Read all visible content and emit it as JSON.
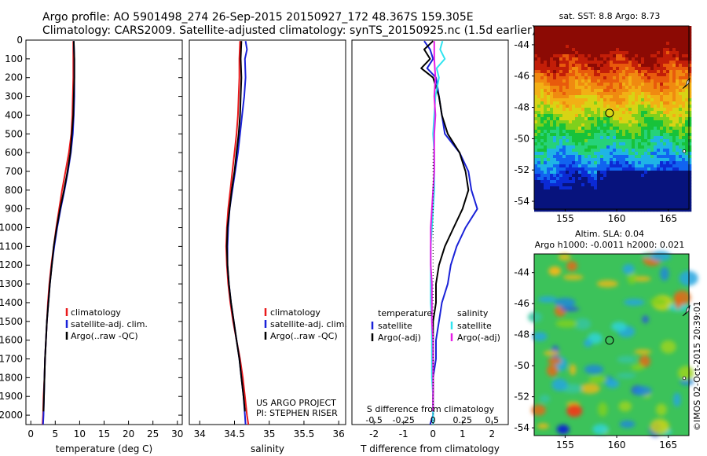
{
  "header": {
    "line1": "Argo profile: AO 5901498_274 26-Sep-2015 20150927_172 48.367S 159.305E",
    "line2": "Climatology: CARS2009. Satellite-adjusted climatology: synTS_20150925.nc (1.5d earlier)"
  },
  "credit": "US ARGO PROJECT",
  "pi": "PI: STEPHEN RISER",
  "stamp": "©IMOS 02-Oct-2015 20:39:01",
  "colors": {
    "red": "#e8191b",
    "blue": "#1a22d8",
    "black": "#000000",
    "magenta": "#e61ee6",
    "cyan": "#30e4f0"
  },
  "chart_data": [
    {
      "type": "line",
      "panel": "temperature",
      "xlabel": "temperature (deg C)",
      "ylabel": "",
      "xlim": [
        -1,
        31
      ],
      "ylim": [
        2050,
        0
      ],
      "xticks": [
        0,
        5,
        10,
        15,
        20,
        25,
        30
      ],
      "yticks": [
        0,
        100,
        200,
        300,
        400,
        500,
        600,
        700,
        800,
        900,
        1000,
        1100,
        1200,
        1300,
        1400,
        1500,
        1600,
        1700,
        1800,
        1900,
        2000
      ],
      "legend": [
        "climatology",
        "satellite-adj. clim.",
        "Argo(..raw -QC)"
      ],
      "legend_position": "lower-center",
      "series": [
        {
          "name": "climatology",
          "color": "#e8191b",
          "points": [
            [
              8.7,
              5
            ],
            [
              8.7,
              100
            ],
            [
              8.7,
              200
            ],
            [
              8.6,
              300
            ],
            [
              8.5,
              400
            ],
            [
              8.3,
              500
            ],
            [
              7.8,
              600
            ],
            [
              7.1,
              700
            ],
            [
              6.4,
              800
            ],
            [
              5.8,
              900
            ],
            [
              5.2,
              1000
            ],
            [
              4.7,
              1100
            ],
            [
              4.2,
              1200
            ],
            [
              3.8,
              1300
            ],
            [
              3.5,
              1400
            ],
            [
              3.3,
              1500
            ],
            [
              3.1,
              1600
            ],
            [
              2.9,
              1700
            ],
            [
              2.8,
              1800
            ],
            [
              2.6,
              1900
            ],
            [
              2.5,
              2000
            ],
            [
              2.4,
              2050
            ]
          ]
        },
        {
          "name": "satellite-adj. clim.",
          "color": "#1a22d8",
          "points": [
            [
              8.8,
              5
            ],
            [
              8.9,
              100
            ],
            [
              8.9,
              200
            ],
            [
              8.9,
              300
            ],
            [
              8.8,
              400
            ],
            [
              8.6,
              500
            ],
            [
              8.2,
              600
            ],
            [
              7.6,
              700
            ],
            [
              6.9,
              800
            ],
            [
              6.1,
              900
            ],
            [
              5.4,
              1000
            ],
            [
              4.8,
              1100
            ],
            [
              4.3,
              1200
            ],
            [
              3.9,
              1300
            ],
            [
              3.6,
              1400
            ],
            [
              3.3,
              1500
            ],
            [
              3.1,
              1600
            ],
            [
              2.9,
              1700
            ],
            [
              2.8,
              1800
            ],
            [
              2.7,
              1900
            ],
            [
              2.6,
              2000
            ],
            [
              2.5,
              2050
            ]
          ]
        },
        {
          "name": "Argo(..raw -QC)",
          "color": "#000000",
          "points": [
            [
              8.8,
              5
            ],
            [
              8.9,
              100
            ],
            [
              8.9,
              200
            ],
            [
              8.8,
              300
            ],
            [
              8.7,
              400
            ],
            [
              8.4,
              500
            ],
            [
              8.1,
              600
            ],
            [
              7.5,
              700
            ],
            [
              6.8,
              800
            ],
            [
              6.0,
              900
            ],
            [
              5.3,
              1000
            ],
            [
              4.7,
              1100
            ],
            [
              4.3,
              1200
            ],
            [
              3.9,
              1300
            ],
            [
              3.6,
              1400
            ],
            [
              3.3,
              1500
            ],
            [
              3.1,
              1600
            ],
            [
              2.9,
              1700
            ],
            [
              2.8,
              1800
            ],
            [
              2.7,
              1900
            ],
            [
              2.6,
              1980
            ]
          ]
        }
      ]
    },
    {
      "type": "line",
      "panel": "salinity",
      "xlabel": "salinity",
      "xlim": [
        33.85,
        36.1
      ],
      "ylim": [
        2050,
        0
      ],
      "xticks": [
        34,
        34.5,
        35,
        35.5,
        36
      ],
      "xticklabels": [
        "34",
        "34.5",
        "35",
        "35.5",
        "36"
      ],
      "legend": [
        "climatology",
        "satellite-adj. clim.",
        "Argo(..raw -QC)"
      ],
      "legend_position": "lower-center",
      "series": [
        {
          "name": "climatology",
          "color": "#e8191b",
          "points": [
            [
              34.58,
              5
            ],
            [
              34.57,
              100
            ],
            [
              34.57,
              200
            ],
            [
              34.56,
              300
            ],
            [
              34.55,
              400
            ],
            [
              34.53,
              500
            ],
            [
              34.5,
              600
            ],
            [
              34.47,
              700
            ],
            [
              34.44,
              800
            ],
            [
              34.41,
              900
            ],
            [
              34.39,
              1000
            ],
            [
              34.38,
              1100
            ],
            [
              34.39,
              1200
            ],
            [
              34.41,
              1300
            ],
            [
              34.44,
              1400
            ],
            [
              34.48,
              1500
            ],
            [
              34.53,
              1600
            ],
            [
              34.58,
              1700
            ],
            [
              34.62,
              1800
            ],
            [
              34.65,
              1900
            ],
            [
              34.68,
              2000
            ],
            [
              34.7,
              2050
            ]
          ]
        },
        {
          "name": "satellite-adj. clim.",
          "color": "#1a22d8",
          "points": [
            [
              34.66,
              5
            ],
            [
              34.68,
              50
            ],
            [
              34.65,
              100
            ],
            [
              34.66,
              200
            ],
            [
              34.64,
              300
            ],
            [
              34.61,
              400
            ],
            [
              34.58,
              500
            ],
            [
              34.55,
              600
            ],
            [
              34.51,
              700
            ],
            [
              34.47,
              800
            ],
            [
              34.43,
              900
            ],
            [
              34.41,
              1000
            ],
            [
              34.4,
              1100
            ],
            [
              34.4,
              1200
            ],
            [
              34.42,
              1300
            ],
            [
              34.45,
              1400
            ],
            [
              34.49,
              1500
            ],
            [
              34.53,
              1600
            ],
            [
              34.57,
              1700
            ],
            [
              34.6,
              1800
            ],
            [
              34.63,
              1900
            ],
            [
              34.65,
              2000
            ],
            [
              34.66,
              2050
            ]
          ]
        },
        {
          "name": "Argo(..raw -QC)",
          "color": "#000000",
          "points": [
            [
              34.6,
              5
            ],
            [
              34.59,
              100
            ],
            [
              34.6,
              200
            ],
            [
              34.59,
              300
            ],
            [
              34.58,
              400
            ],
            [
              34.56,
              500
            ],
            [
              34.53,
              600
            ],
            [
              34.5,
              700
            ],
            [
              34.46,
              800
            ],
            [
              34.43,
              900
            ],
            [
              34.4,
              1000
            ],
            [
              34.39,
              1100
            ],
            [
              34.4,
              1200
            ],
            [
              34.42,
              1300
            ],
            [
              34.45,
              1400
            ],
            [
              34.49,
              1500
            ],
            [
              34.53,
              1600
            ],
            [
              34.57,
              1700
            ],
            [
              34.6,
              1800
            ],
            [
              34.63,
              1900
            ],
            [
              34.65,
              1980
            ]
          ]
        }
      ]
    },
    {
      "type": "line",
      "panel": "difference",
      "xlabel": "T difference from climatology",
      "top_axis_label": "S difference from climatology",
      "xlim": [
        -2.75,
        2.55
      ],
      "ylim": [
        2050,
        0
      ],
      "xticks": [
        -2,
        -1,
        0,
        1,
        2
      ],
      "top_xticks": [
        -0.5,
        -0.25,
        0,
        0.25,
        0.5
      ],
      "top_xticklabels": [
        "-0.5",
        "-0.25",
        "0",
        "0.25",
        "0.5"
      ],
      "legend_temperature": {
        "title": "temperature",
        "items": [
          "satellite",
          "Argo(-adj)"
        ]
      },
      "legend_salinity": {
        "title": "salinity",
        "items": [
          "satellite",
          "Argo(-adj)"
        ]
      },
      "series": [
        {
          "name": "satellite",
          "group": "temperature",
          "color": "#1a22d8",
          "points": [
            [
              -0.3,
              5
            ],
            [
              -0.1,
              50
            ],
            [
              0.0,
              100
            ],
            [
              -0.2,
              150
            ],
            [
              0.1,
              200
            ],
            [
              0.2,
              300
            ],
            [
              0.3,
              400
            ],
            [
              0.4,
              500
            ],
            [
              0.9,
              600
            ],
            [
              1.2,
              700
            ],
            [
              1.3,
              800
            ],
            [
              1.5,
              900
            ],
            [
              1.1,
              1000
            ],
            [
              0.8,
              1100
            ],
            [
              0.6,
              1200
            ],
            [
              0.5,
              1300
            ],
            [
              0.3,
              1400
            ],
            [
              0.2,
              1500
            ],
            [
              0.1,
              1600
            ],
            [
              0.1,
              1700
            ],
            [
              0.0,
              1800
            ],
            [
              0.0,
              1900
            ],
            [
              0.0,
              2000
            ],
            [
              -0.1,
              2050
            ]
          ]
        },
        {
          "name": "Argo(-adj)",
          "group": "temperature",
          "color": "#000000",
          "points": [
            [
              0.0,
              5
            ],
            [
              -0.3,
              50
            ],
            [
              -0.1,
              100
            ],
            [
              -0.4,
              150
            ],
            [
              0.0,
              200
            ],
            [
              0.2,
              300
            ],
            [
              0.3,
              400
            ],
            [
              0.5,
              500
            ],
            [
              0.9,
              600
            ],
            [
              1.1,
              700
            ],
            [
              1.2,
              800
            ],
            [
              1.0,
              900
            ],
            [
              0.7,
              1000
            ],
            [
              0.4,
              1100
            ],
            [
              0.2,
              1200
            ],
            [
              0.1,
              1300
            ],
            [
              0.1,
              1400
            ],
            [
              0.0,
              1500
            ],
            [
              0.0,
              1600
            ],
            [
              0.0,
              1700
            ],
            [
              0.0,
              1800
            ],
            [
              0.0,
              1900
            ],
            [
              0.0,
              1980
            ]
          ]
        },
        {
          "name": "satellite",
          "group": "salinity",
          "color": "#30e4f0",
          "points": [
            [
              0.08,
              5
            ],
            [
              0.06,
              50
            ],
            [
              0.1,
              100
            ],
            [
              0.03,
              150
            ],
            [
              0.05,
              200
            ],
            [
              0.02,
              300
            ],
            [
              0.01,
              400
            ],
            [
              0.0,
              500
            ],
            [
              0.01,
              600
            ],
            [
              0.01,
              700
            ],
            [
              0.01,
              800
            ],
            [
              0.0,
              900
            ],
            [
              -0.01,
              1000
            ],
            [
              -0.02,
              1100
            ],
            [
              -0.02,
              1200
            ],
            [
              -0.02,
              1300
            ],
            [
              -0.02,
              1400
            ],
            [
              -0.01,
              1500
            ],
            [
              -0.01,
              1600
            ],
            [
              -0.01,
              1700
            ],
            [
              -0.01,
              1800
            ],
            [
              0.0,
              1900
            ],
            [
              0.0,
              2000
            ],
            [
              0.0,
              2050
            ]
          ]
        },
        {
          "name": "Argo(-adj)",
          "group": "salinity",
          "color": "#e61ee6",
          "points": [
            [
              0.01,
              5
            ],
            [
              0.01,
              100
            ],
            [
              0.02,
              200
            ],
            [
              0.01,
              300
            ],
            [
              0.02,
              400
            ],
            [
              0.01,
              500
            ],
            [
              0.01,
              600
            ],
            [
              0.01,
              700
            ],
            [
              0.0,
              800
            ],
            [
              -0.01,
              900
            ],
            [
              -0.02,
              1000
            ],
            [
              -0.02,
              1100
            ],
            [
              -0.02,
              1200
            ],
            [
              -0.01,
              1300
            ],
            [
              -0.01,
              1400
            ],
            [
              -0.01,
              1500
            ],
            [
              0.0,
              1600
            ],
            [
              0.0,
              1700
            ],
            [
              0.0,
              1800
            ],
            [
              0.0,
              1900
            ],
            [
              0.0,
              1980
            ]
          ]
        }
      ]
    },
    {
      "type": "heatmap",
      "panel": "sst_map",
      "title": "sat. SST: 8.8 Argo: 8.73",
      "xlim": [
        152,
        167
      ],
      "ylim": [
        -54.5,
        -42.8
      ],
      "xticks": [
        155,
        160,
        165
      ],
      "yticks": [
        -44,
        -46,
        -48,
        -50,
        -52,
        -54
      ],
      "argo_position": {
        "lon": 159.305,
        "lat": -48.367
      }
    },
    {
      "type": "heatmap",
      "panel": "sla_map",
      "title": "Altim. SLA: 0.04",
      "subtitle": "Argo h1000: -0.0011 h2000: 0.021",
      "xlim": [
        152,
        167
      ],
      "ylim": [
        -54.5,
        -42.8
      ],
      "xticks": [
        155,
        160,
        165
      ],
      "yticks": [
        -44,
        -46,
        -48,
        -50,
        -52,
        -54
      ],
      "argo_position": {
        "lon": 159.305,
        "lat": -48.367
      }
    }
  ]
}
